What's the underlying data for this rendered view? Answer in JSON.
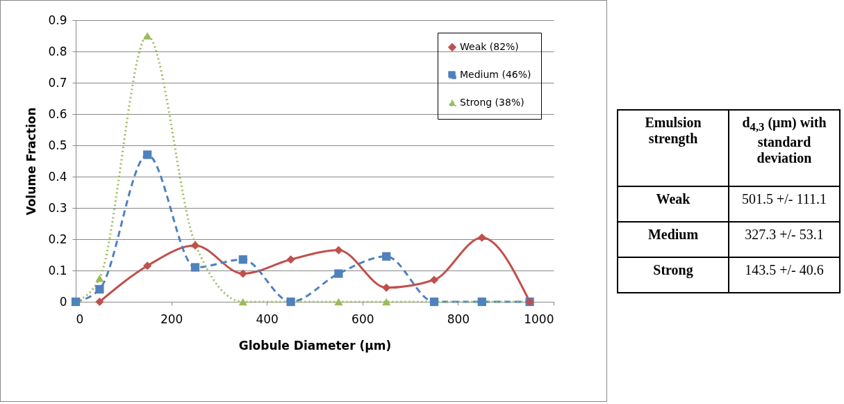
{
  "chart_data": [
    {
      "type": "line",
      "xlabel": "Globule Diameter (μm)",
      "ylabel": "Volume Fraction",
      "xlim": [
        0,
        1000
      ],
      "xticks": [
        0,
        200,
        400,
        600,
        800,
        1000
      ],
      "ylim": [
        0,
        0.9
      ],
      "yticks": [
        0,
        0.1,
        0.2,
        0.3,
        0.4,
        0.5,
        0.6,
        0.7,
        0.8,
        0.9
      ],
      "grid": "y",
      "legend": "top right",
      "series": [
        {
          "name": "Weak (82%)",
          "color": "#c0504d",
          "marker": "diamond",
          "line_style": "solid",
          "x": [
            50,
            150,
            250,
            350,
            450,
            550,
            650,
            750,
            850,
            950
          ],
          "values": [
            0,
            0.115,
            0.18,
            0.09,
            0.135,
            0.165,
            0.045,
            0.07,
            0.205,
            0
          ]
        },
        {
          "name": "Medium (46%)",
          "color": "#4f81bd",
          "marker": "square",
          "line_style": "dashed",
          "x": [
            0,
            50,
            150,
            250,
            350,
            450,
            550,
            650,
            750,
            850,
            950
          ],
          "values": [
            0,
            0.04,
            0.47,
            0.11,
            0.135,
            0,
            0.09,
            0.145,
            0,
            0,
            0
          ]
        },
        {
          "name": "Strong (38%)",
          "color": "#9bbb59",
          "marker": "triangle",
          "line_style": "dotted",
          "x": [
            0,
            50,
            150,
            250,
            350,
            450,
            550,
            650,
            750,
            850,
            950
          ],
          "values": [
            0,
            0.075,
            0.85,
            0.185,
            0,
            0,
            0,
            0,
            0,
            0,
            0
          ]
        }
      ]
    },
    {
      "type": "other",
      "annotations": [
        "Emulsion strength",
        "d$_{4,3}$ (μm) with standard deviation",
        "Weak",
        "501.5 +/- 111.1",
        "Medium",
        "327.3 +/- 53.1",
        "Strong",
        "143.5 +/- 40.6"
      ]
    }
  ]
}
